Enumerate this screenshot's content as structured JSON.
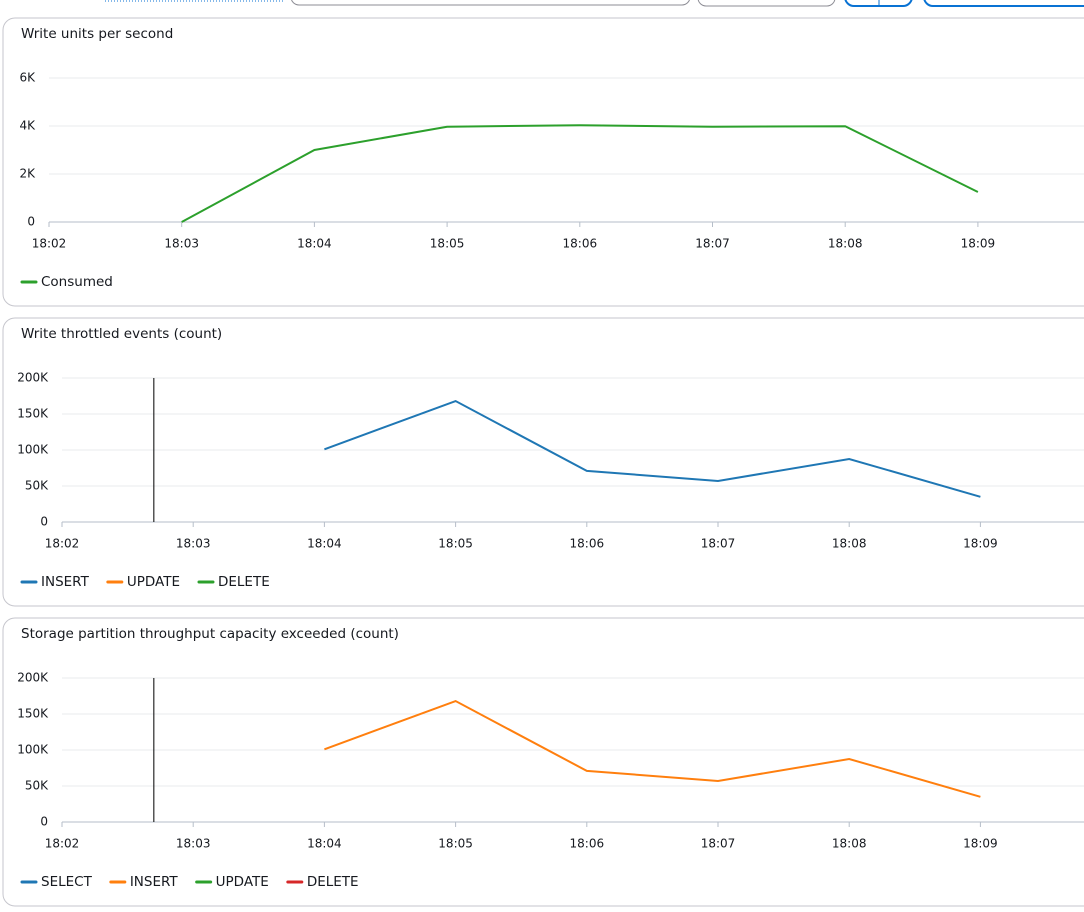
{
  "chart_data": [
    {
      "type": "line",
      "title": "Write units per second",
      "categories": [
        "18:02",
        "18:03",
        "18:04",
        "18:05",
        "18:06",
        "18:07",
        "18:08",
        "18:09"
      ],
      "series": [
        {
          "name": "Consumed",
          "color": "#2ca02c",
          "values": [
            null,
            0,
            3000,
            3970,
            4030,
            3970,
            3990,
            1250
          ]
        }
      ],
      "ylim": [
        0,
        6000
      ],
      "yticks": [
        0,
        {
          "value": 2000,
          "label": "2K"
        },
        {
          "value": 4000,
          "label": "4K"
        },
        {
          "value": 6000,
          "label": "6K"
        }
      ],
      "grid": true
    },
    {
      "type": "line",
      "title": "Write throttled events (count)",
      "categories": [
        "18:02",
        "18:03",
        "18:04",
        "18:05",
        "18:06",
        "18:07",
        "18:08",
        "18:09"
      ],
      "series": [
        {
          "name": "INSERT",
          "color": "#1f77b4",
          "values": [
            null,
            null,
            101000,
            168000,
            71000,
            57000,
            87500,
            35000
          ]
        },
        {
          "name": "UPDATE",
          "color": "#ff7f0e",
          "values": [
            null,
            null,
            null,
            null,
            null,
            null,
            null,
            null
          ]
        },
        {
          "name": "DELETE",
          "color": "#2ca02c",
          "values": [
            null,
            null,
            null,
            null,
            null,
            null,
            null,
            null
          ]
        }
      ],
      "ylim": [
        0,
        200000
      ],
      "yticks": [
        0,
        {
          "value": 50000,
          "label": "50K"
        },
        {
          "value": 100000,
          "label": "100K"
        },
        {
          "value": 150000,
          "label": "150K"
        },
        {
          "value": 200000,
          "label": "200K"
        }
      ],
      "grid": true
    },
    {
      "type": "line",
      "title": "Storage partition throughput capacity exceeded (count)",
      "categories": [
        "18:02",
        "18:03",
        "18:04",
        "18:05",
        "18:06",
        "18:07",
        "18:08",
        "18:09"
      ],
      "series": [
        {
          "name": "SELECT",
          "color": "#1f77b4",
          "values": [
            null,
            null,
            null,
            null,
            null,
            null,
            null,
            null
          ]
        },
        {
          "name": "INSERT",
          "color": "#ff7f0e",
          "values": [
            null,
            null,
            101000,
            168000,
            71000,
            57000,
            87500,
            35000
          ]
        },
        {
          "name": "UPDATE",
          "color": "#2ca02c",
          "values": [
            null,
            null,
            null,
            null,
            null,
            null,
            null,
            null
          ]
        },
        {
          "name": "DELETE",
          "color": "#d62728",
          "values": [
            null,
            null,
            null,
            null,
            null,
            null,
            null,
            null
          ]
        }
      ],
      "ylim": [
        0,
        200000
      ],
      "yticks": [
        0,
        {
          "value": 50000,
          "label": "50K"
        },
        {
          "value": 100000,
          "label": "100K"
        },
        {
          "value": 150000,
          "label": "150K"
        },
        {
          "value": 200000,
          "label": "200K"
        }
      ],
      "grid": true
    }
  ]
}
